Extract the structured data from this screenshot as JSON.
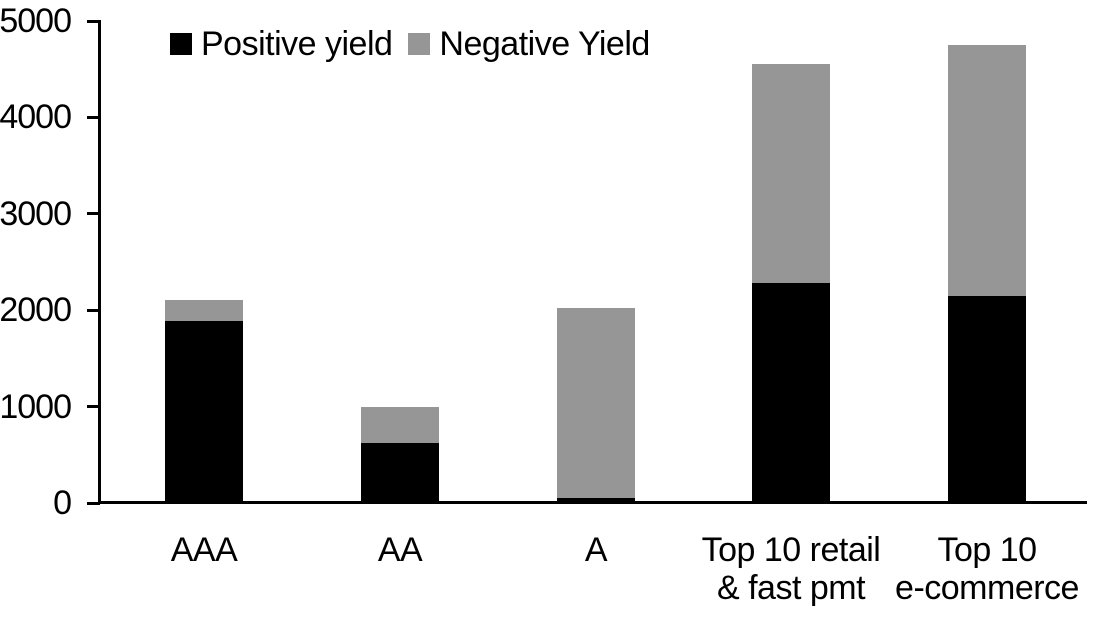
{
  "chart_data": {
    "type": "bar",
    "stacked": true,
    "title": "",
    "xlabel": "",
    "ylabel": "",
    "categories": [
      "AAA",
      "AA",
      "A",
      "Top 10 retail & fast pmt",
      "Top 10 e-commerce"
    ],
    "category_label_lines": [
      [
        "AAA"
      ],
      [
        "AA"
      ],
      [
        "A"
      ],
      [
        "Top 10 retail",
        "& fast pmt"
      ],
      [
        "Top 10",
        "e-commerce"
      ]
    ],
    "series": [
      {
        "name": "Positive yield",
        "color": "#000000",
        "values": [
          1890,
          620,
          50,
          2280,
          2150
        ]
      },
      {
        "name": "Negative Yield",
        "color": "#969696",
        "values": [
          220,
          380,
          1975,
          2270,
          2600
        ]
      }
    ],
    "totals": [
      2110,
      1000,
      2025,
      4550,
      4750
    ],
    "ylim": [
      0,
      5000
    ],
    "yticks": [
      0,
      1000,
      2000,
      3000,
      4000,
      5000
    ],
    "grid": false,
    "legend_position": "top",
    "axis_color": "#000000",
    "background_color": "#ffffff"
  }
}
